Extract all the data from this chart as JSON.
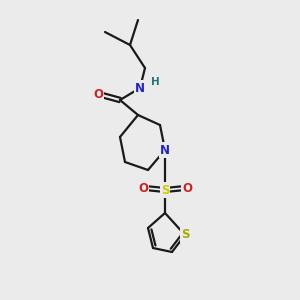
{
  "background_color": "#ebebeb",
  "bond_color": "#1a1a1a",
  "atom_colors": {
    "N": "#2222cc",
    "O": "#cc2222",
    "S_sulfonyl": "#cccc00",
    "S_thiophene": "#aaaa00",
    "H": "#227777",
    "C": "#1a1a1a"
  },
  "figure_size": [
    3.0,
    3.0
  ],
  "dpi": 100,
  "bonds": {
    "lw": 1.6
  }
}
